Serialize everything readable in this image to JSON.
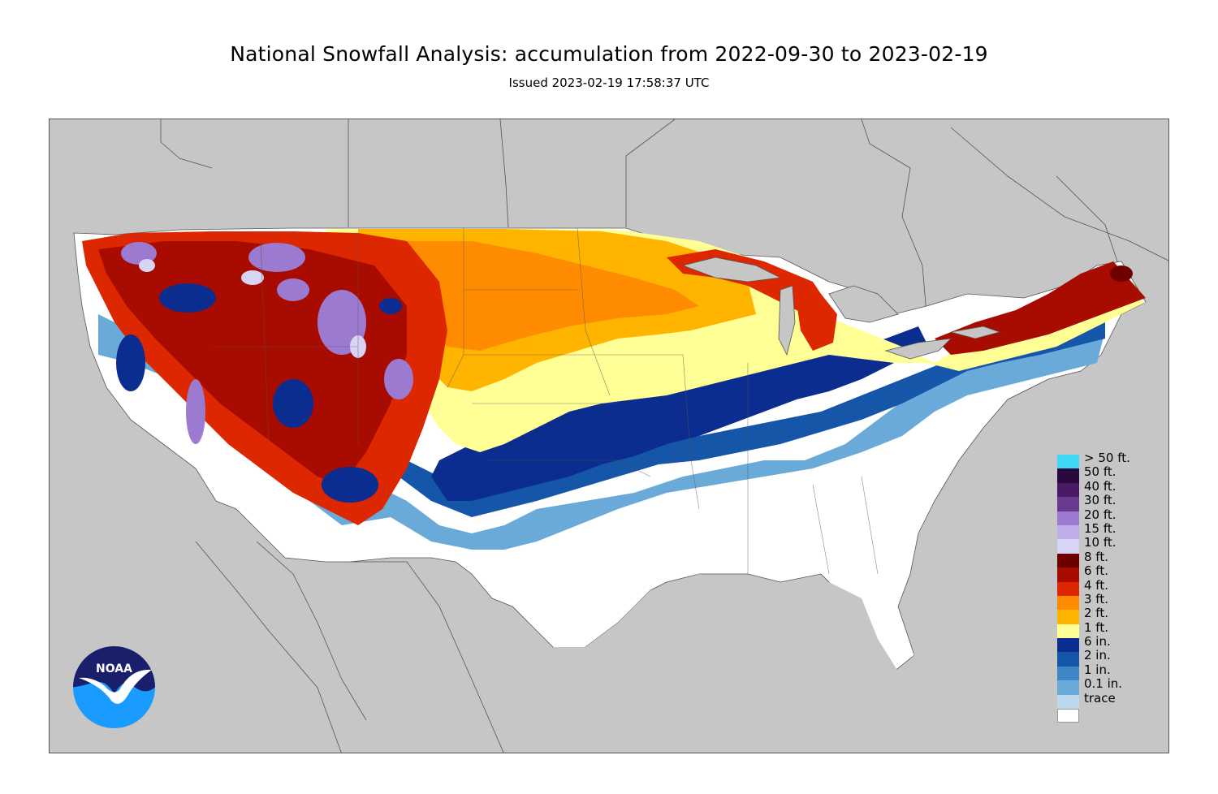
{
  "title": "National Snowfall Analysis: accumulation from 2022-09-30 to 2023-02-19",
  "subtitle": "Issued 2023-02-19 17:58:37 UTC",
  "legend": [
    {
      "label": "> 50 ft.",
      "color": "#3fd9f5"
    },
    {
      "label": "50 ft.",
      "color": "#2a0a3e"
    },
    {
      "label": "40 ft.",
      "color": "#4b1966"
    },
    {
      "label": "30 ft.",
      "color": "#6a3a8f"
    },
    {
      "label": "20 ft.",
      "color": "#9b7ad0"
    },
    {
      "label": "15 ft.",
      "color": "#bfaee8"
    },
    {
      "label": "10 ft.",
      "color": "#d8d4f6"
    },
    {
      "label": "8 ft.",
      "color": "#6e0000"
    },
    {
      "label": "6 ft.",
      "color": "#a80c00"
    },
    {
      "label": "4 ft.",
      "color": "#dc2700"
    },
    {
      "label": "3 ft.",
      "color": "#ff8c00"
    },
    {
      "label": "2 ft.",
      "color": "#ffb400"
    },
    {
      "label": "1 ft.",
      "color": "#ffff96"
    },
    {
      "label": "6 in.",
      "color": "#0a2d8f"
    },
    {
      "label": "2 in.",
      "color": "#1556a8"
    },
    {
      "label": "1 in.",
      "color": "#3f87c4"
    },
    {
      "label": "0.1 in.",
      "color": "#6aaad8"
    },
    {
      "label": "trace",
      "color": "#bcd8ec"
    },
    {
      "label": "",
      "color": "#ffffff"
    }
  ],
  "logo": {
    "text": "NOAA"
  },
  "colors": {
    "background_land": "#c6c6c6"
  }
}
